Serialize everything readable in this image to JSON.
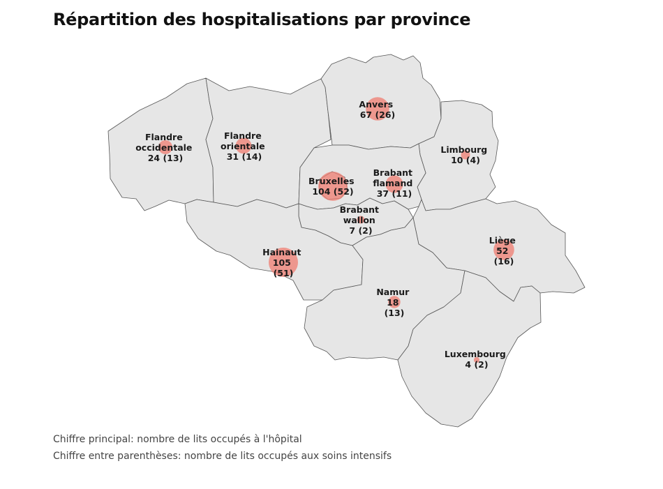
{
  "title": "Répartition des hospitalisations par province",
  "colors": {
    "province_fill": "#e6e6e6",
    "border": "#555555",
    "bubble": "#ef7c70"
  },
  "notes": {
    "primary": "Chiffre principal: nombre de lits occupés à l'hôpital",
    "secondary": "Chiffre entre parenthèses: nombre de lits occupés aux soins intensifs"
  },
  "provinces": {
    "flandre_occidentale": {
      "lines": [
        "Flandre",
        "occidentale",
        "24 (13)"
      ],
      "hospital_beds": 24,
      "icu_beds": 13
    },
    "flandre_orientale": {
      "lines": [
        "Flandre",
        "orientale",
        "31 (14)"
      ],
      "hospital_beds": 31,
      "icu_beds": 14
    },
    "anvers": {
      "lines": [
        "Anvers",
        "67 (26)"
      ],
      "hospital_beds": 67,
      "icu_beds": 26
    },
    "limbourg": {
      "lines": [
        "Limbourg",
        "10 (4)"
      ],
      "hospital_beds": 10,
      "icu_beds": 4
    },
    "bruxelles": {
      "lines": [
        "Bruxelles",
        "104 (52)"
      ],
      "hospital_beds": 104,
      "icu_beds": 52
    },
    "brabant_flamand": {
      "lines": [
        "Brabant",
        "flamand",
        "37 (11)"
      ],
      "hospital_beds": 37,
      "icu_beds": 11
    },
    "brabant_wallon": {
      "lines": [
        "Brabant",
        "wallon",
        "7 (2)"
      ],
      "hospital_beds": 7,
      "icu_beds": 2
    },
    "hainaut": {
      "lines": [
        "Hainaut",
        "105",
        "(51)"
      ],
      "hospital_beds": 105,
      "icu_beds": 51
    },
    "liege": {
      "lines": [
        "Liège",
        "52",
        "(16)"
      ],
      "hospital_beds": 52,
      "icu_beds": 16
    },
    "namur": {
      "lines": [
        "Namur",
        "18",
        "(13)"
      ],
      "hospital_beds": 18,
      "icu_beds": 13
    },
    "luxembourg": {
      "lines": [
        "Luxembourg",
        "4 (2)"
      ],
      "hospital_beds": 4,
      "icu_beds": 2
    }
  }
}
